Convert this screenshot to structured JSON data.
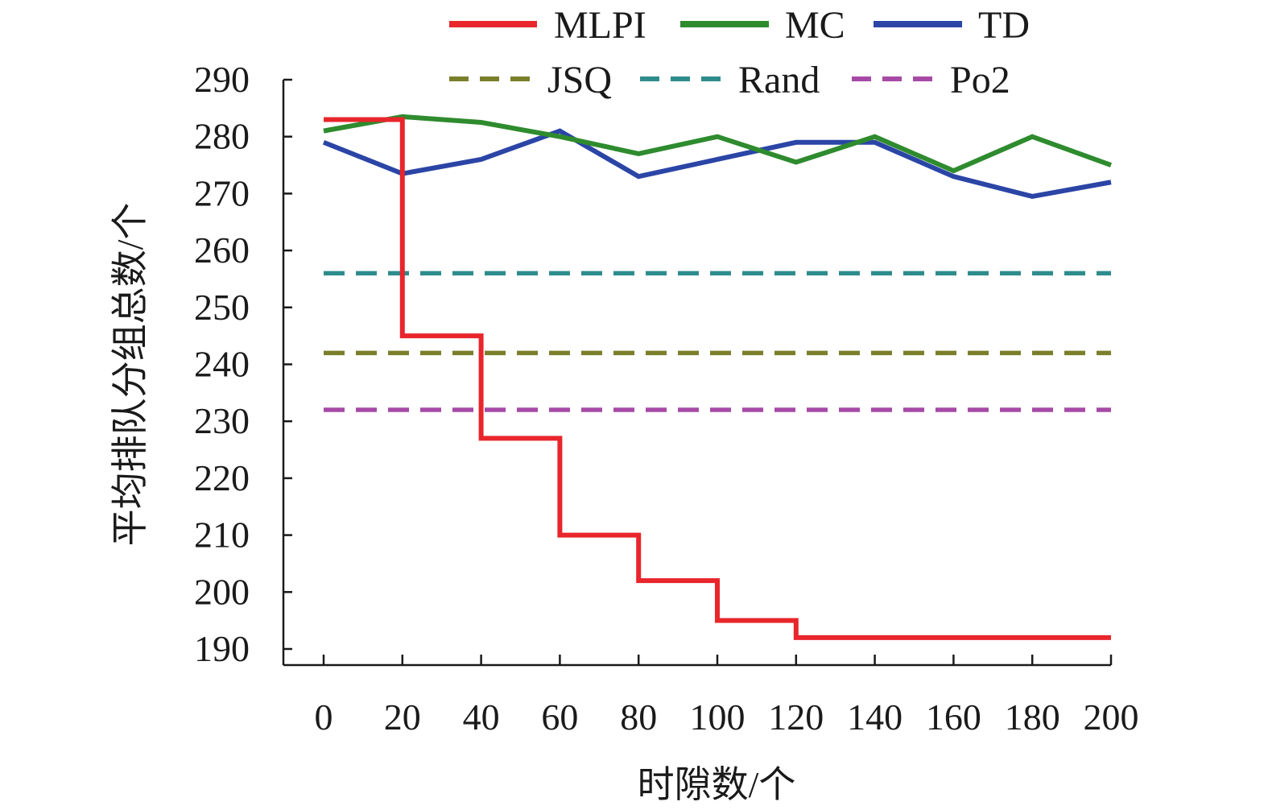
{
  "chart_data": {
    "type": "line",
    "xlabel": "时隙数/个",
    "ylabel": "平均排队分组总数/个",
    "xlim": [
      0,
      200
    ],
    "ylim": [
      190,
      290
    ],
    "xticks": [
      0,
      20,
      40,
      60,
      80,
      100,
      120,
      140,
      160,
      180,
      200
    ],
    "yticks": [
      190,
      200,
      210,
      220,
      230,
      240,
      250,
      260,
      270,
      280,
      290
    ],
    "x_tick_labels": [
      "0",
      "20",
      "40",
      "60",
      "80",
      "100",
      "120",
      "140",
      "160",
      "180",
      "200"
    ],
    "y_tick_labels": [
      "190",
      "200",
      "210",
      "220",
      "230",
      "240",
      "250",
      "260",
      "270",
      "280",
      "290"
    ],
    "grid": false,
    "legend_position": "top",
    "series": [
      {
        "name": "MLPI",
        "color": "#e8262c",
        "style": "solid",
        "step": true,
        "x": [
          0,
          20,
          40,
          60,
          80,
          100,
          120,
          140,
          160,
          180,
          200
        ],
        "values": [
          283,
          245,
          227,
          210,
          202,
          195,
          192,
          192,
          192,
          192,
          192
        ]
      },
      {
        "name": "MC",
        "color": "#2e8b2e",
        "style": "solid",
        "step": false,
        "x": [
          0,
          20,
          40,
          60,
          80,
          100,
          120,
          140,
          160,
          180,
          200
        ],
        "values": [
          281,
          283.5,
          282.5,
          280,
          277,
          280,
          275.5,
          280,
          274,
          280,
          275
        ]
      },
      {
        "name": "TD",
        "color": "#2b45a6",
        "style": "solid",
        "step": false,
        "x": [
          0,
          20,
          40,
          60,
          80,
          100,
          120,
          140,
          160,
          180,
          200
        ],
        "values": [
          279,
          273.5,
          276,
          281,
          273,
          276,
          279,
          279,
          273,
          269.5,
          272
        ]
      },
      {
        "name": "JSQ",
        "color": "#7a7f2a",
        "style": "dashed",
        "step": false,
        "x": [
          0,
          200
        ],
        "values": [
          242,
          242
        ]
      },
      {
        "name": "Rand",
        "color": "#2f8c8c",
        "style": "dashed",
        "step": false,
        "x": [
          0,
          200
        ],
        "values": [
          256,
          256
        ]
      },
      {
        "name": "Po2",
        "color": "#a64aa6",
        "style": "dashed",
        "step": false,
        "x": [
          0,
          200
        ],
        "values": [
          232,
          232
        ]
      }
    ]
  }
}
